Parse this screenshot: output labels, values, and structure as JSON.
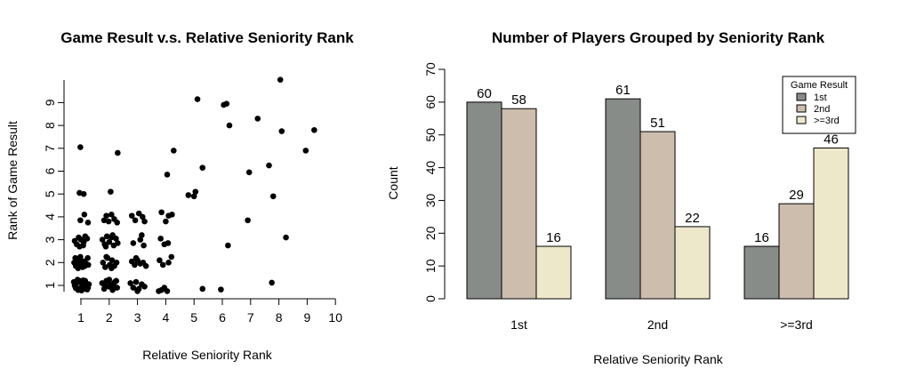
{
  "chart_data": [
    {
      "type": "scatter",
      "title": "Game Result v.s. Relative Seniority Rank",
      "xlabel": "Relative Seniority Rank",
      "ylabel": "Rank of Game Result",
      "xlim": [
        0.6,
        10
      ],
      "ylim": [
        0.7,
        10.1
      ],
      "xticks": [
        "1",
        "2",
        "3",
        "4",
        "5",
        "6",
        "7",
        "8",
        "9",
        "10"
      ],
      "yticks": [
        "1",
        "2",
        "3",
        "4",
        "5",
        "6",
        "7",
        "8",
        "9"
      ],
      "grid": false,
      "points": [
        [
          0.75,
          1.15
        ],
        [
          0.8,
          0.95
        ],
        [
          0.85,
          1.1
        ],
        [
          0.9,
          0.8
        ],
        [
          0.95,
          1.2
        ],
        [
          1.0,
          0.9
        ],
        [
          1.05,
          1.05
        ],
        [
          1.1,
          0.85
        ],
        [
          1.15,
          1.2
        ],
        [
          1.2,
          1.0
        ],
        [
          1.25,
          0.9
        ],
        [
          0.78,
          1.0
        ],
        [
          0.88,
          1.25
        ],
        [
          0.98,
          1.15
        ],
        [
          1.08,
          1.22
        ],
        [
          1.18,
          1.1
        ],
        [
          1.28,
          1.05
        ],
        [
          0.82,
          0.88
        ],
        [
          1.22,
          0.82
        ],
        [
          1.02,
          0.78
        ],
        [
          0.76,
          2.0
        ],
        [
          0.82,
          1.85
        ],
        [
          0.88,
          2.15
        ],
        [
          0.94,
          1.9
        ],
        [
          1.0,
          2.1
        ],
        [
          1.06,
          1.8
        ],
        [
          1.12,
          2.05
        ],
        [
          1.18,
          1.95
        ],
        [
          1.24,
          2.2
        ],
        [
          0.8,
          2.2
        ],
        [
          0.9,
          1.75
        ],
        [
          1.02,
          1.95
        ],
        [
          1.14,
          1.85
        ],
        [
          1.26,
          1.9
        ],
        [
          0.86,
          2.05
        ],
        [
          0.98,
          2.25
        ],
        [
          0.78,
          2.95
        ],
        [
          0.85,
          2.8
        ],
        [
          0.92,
          3.1
        ],
        [
          1.0,
          3.0
        ],
        [
          1.08,
          2.75
        ],
        [
          1.15,
          3.15
        ],
        [
          1.22,
          3.05
        ],
        [
          0.95,
          2.7
        ],
        [
          1.1,
          2.9
        ],
        [
          0.98,
          3.85
        ],
        [
          1.12,
          4.1
        ],
        [
          1.25,
          3.75
        ],
        [
          0.95,
          5.05
        ],
        [
          1.1,
          5.0
        ],
        [
          0.98,
          7.05
        ],
        [
          1.75,
          1.1
        ],
        [
          1.82,
          0.85
        ],
        [
          1.9,
          1.2
        ],
        [
          1.98,
          0.95
        ],
        [
          2.05,
          1.05
        ],
        [
          2.12,
          0.8
        ],
        [
          2.2,
          1.15
        ],
        [
          2.28,
          0.9
        ],
        [
          1.85,
          1.0
        ],
        [
          2.0,
          1.25
        ],
        [
          2.15,
          1.0
        ],
        [
          2.25,
          1.2
        ],
        [
          1.78,
          2.0
        ],
        [
          1.86,
          1.8
        ],
        [
          1.94,
          2.2
        ],
        [
          2.02,
          1.9
        ],
        [
          2.1,
          2.1
        ],
        [
          2.18,
          1.85
        ],
        [
          2.26,
          2.0
        ],
        [
          1.9,
          2.25
        ],
        [
          2.08,
          1.75
        ],
        [
          1.76,
          3.0
        ],
        [
          1.84,
          2.8
        ],
        [
          1.92,
          3.15
        ],
        [
          2.0,
          2.9
        ],
        [
          2.08,
          3.1
        ],
        [
          2.16,
          2.75
        ],
        [
          2.24,
          3.05
        ],
        [
          2.3,
          2.85
        ],
        [
          1.88,
          2.7
        ],
        [
          2.12,
          3.2
        ],
        [
          1.82,
          3.85
        ],
        [
          1.9,
          4.05
        ],
        [
          1.98,
          3.8
        ],
        [
          2.08,
          4.1
        ],
        [
          2.18,
          3.9
        ],
        [
          2.28,
          3.75
        ],
        [
          2.05,
          5.1
        ],
        [
          2.3,
          6.8
        ],
        [
          2.75,
          1.1
        ],
        [
          2.85,
          0.9
        ],
        [
          2.95,
          1.15
        ],
        [
          3.05,
          0.85
        ],
        [
          3.15,
          1.05
        ],
        [
          3.25,
          0.95
        ],
        [
          3.0,
          0.75
        ],
        [
          2.8,
          2.05
        ],
        [
          2.9,
          1.9
        ],
        [
          3.0,
          2.1
        ],
        [
          3.1,
          1.95
        ],
        [
          3.2,
          2.0
        ],
        [
          3.3,
          1.85
        ],
        [
          2.95,
          2.2
        ],
        [
          2.85,
          2.85
        ],
        [
          3.1,
          3.0
        ],
        [
          3.22,
          2.75
        ],
        [
          3.15,
          3.2
        ],
        [
          2.8,
          4.05
        ],
        [
          2.92,
          3.85
        ],
        [
          3.05,
          4.15
        ],
        [
          3.18,
          4.0
        ],
        [
          3.25,
          3.8
        ],
        [
          3.75,
          0.75
        ],
        [
          3.85,
          0.8
        ],
        [
          3.95,
          0.9
        ],
        [
          4.05,
          0.75
        ],
        [
          3.78,
          2.1
        ],
        [
          3.9,
          1.9
        ],
        [
          4.1,
          2.0
        ],
        [
          4.2,
          2.25
        ],
        [
          3.82,
          3.05
        ],
        [
          3.95,
          2.8
        ],
        [
          4.08,
          2.85
        ],
        [
          3.85,
          4.2
        ],
        [
          4.0,
          3.8
        ],
        [
          4.1,
          4.05
        ],
        [
          4.22,
          4.1
        ],
        [
          4.05,
          5.85
        ],
        [
          4.28,
          6.9
        ],
        [
          4.8,
          4.95
        ],
        [
          5.0,
          4.9
        ],
        [
          5.05,
          5.1
        ],
        [
          5.12,
          9.15
        ],
        [
          5.3,
          6.15
        ],
        [
          5.3,
          0.85
        ],
        [
          5.95,
          0.82
        ],
        [
          6.05,
          8.9
        ],
        [
          6.15,
          8.95
        ],
        [
          6.2,
          2.75
        ],
        [
          6.25,
          8.0
        ],
        [
          6.9,
          3.85
        ],
        [
          6.95,
          5.95
        ],
        [
          7.25,
          8.3
        ],
        [
          7.65,
          6.25
        ],
        [
          7.75,
          1.12
        ],
        [
          7.8,
          4.9
        ],
        [
          8.05,
          10.0
        ],
        [
          8.1,
          7.75
        ],
        [
          8.25,
          3.1
        ],
        [
          8.95,
          6.9
        ],
        [
          9.25,
          7.8
        ]
      ]
    },
    {
      "type": "bar",
      "title": "Number of Players Grouped by Seniority Rank",
      "xlabel": "Relative Seniority Rank",
      "ylabel": "Count",
      "ylim": [
        0,
        70
      ],
      "yticks": [
        "0",
        "10",
        "20",
        "30",
        "40",
        "50",
        "60",
        "70"
      ],
      "categories": [
        "1st",
        "2nd",
        ">=3rd"
      ],
      "series": [
        {
          "name": "1st",
          "values": [
            60,
            61,
            16
          ],
          "color": "#888c89"
        },
        {
          "name": "2nd",
          "values": [
            58,
            51,
            29
          ],
          "color": "#cdbdad"
        },
        {
          "name": ">=3rd",
          "values": [
            16,
            22,
            46
          ],
          "color": "#eee8ca"
        }
      ],
      "legend": {
        "title": "Game Result",
        "position": "top-right"
      },
      "grid": false
    }
  ]
}
